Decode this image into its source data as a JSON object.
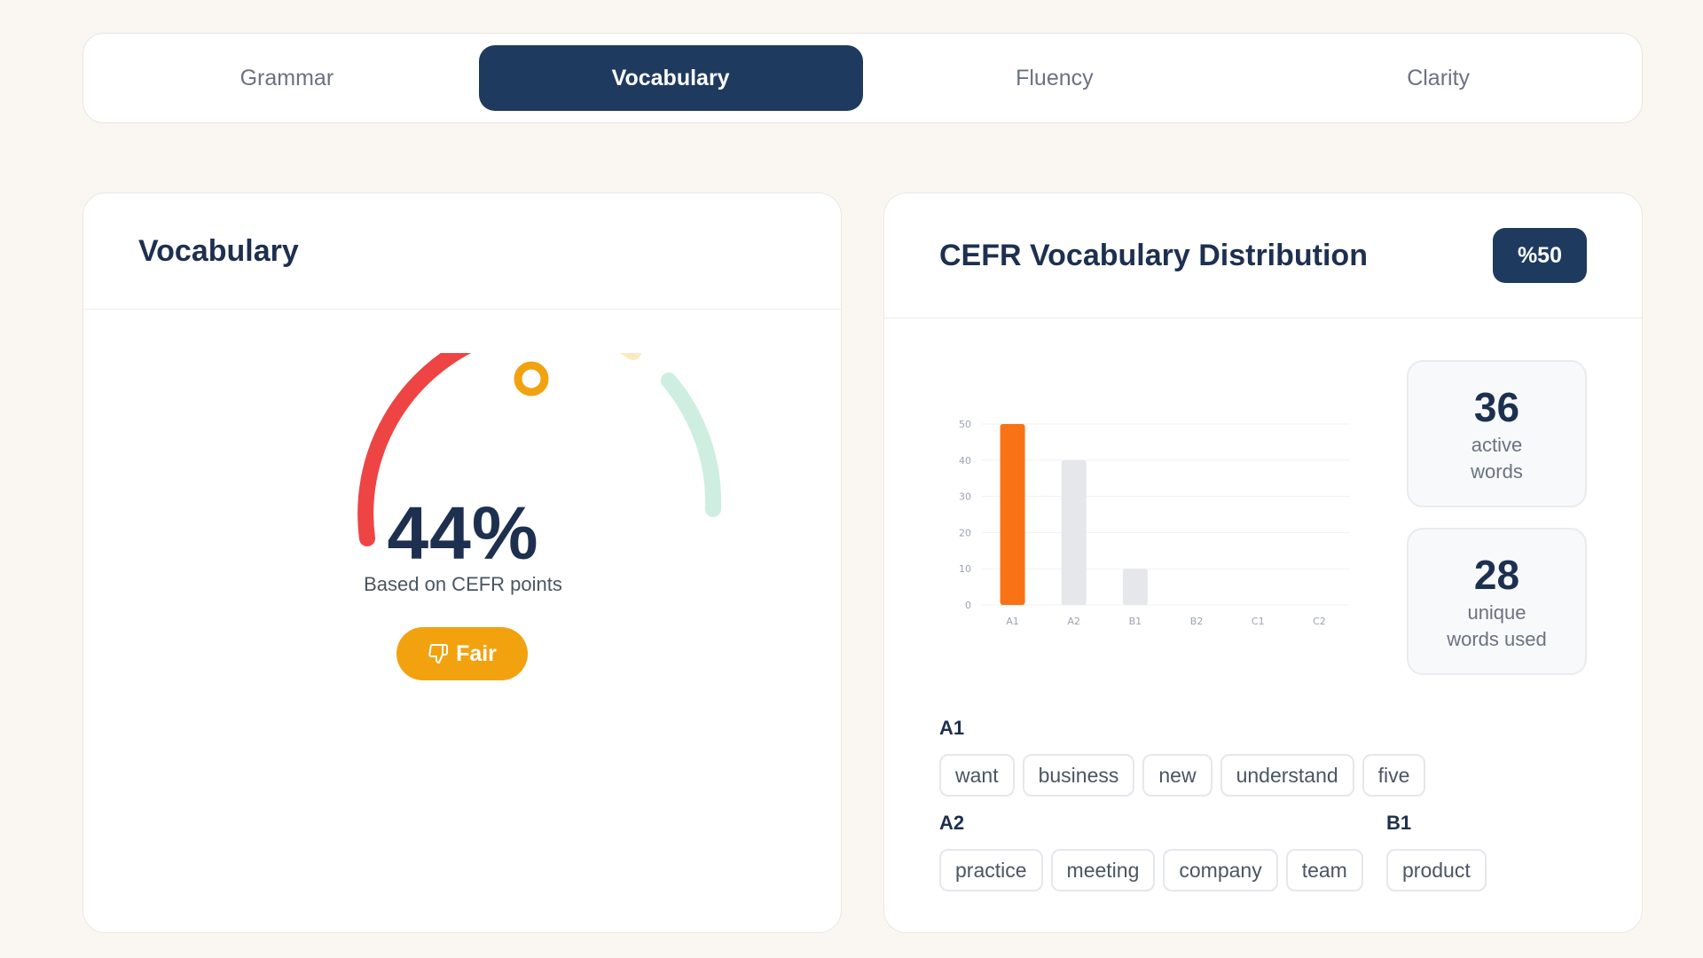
{
  "tabs": [
    "Grammar",
    "Vocabulary",
    "Fluency",
    "Clarity"
  ],
  "active_tab": "Vocabulary",
  "vocab_card": {
    "title": "Vocabulary",
    "score": "44%",
    "score_value": 44,
    "subtitle": "Based on CEFR points",
    "rating": "Fair",
    "gauge_colors": {
      "low": "#ef4444",
      "mid": "#f2a20f",
      "mid_light": "#fde9c1",
      "high": "#cdeee0"
    }
  },
  "cefr_card": {
    "title": "CEFR Vocabulary Distribution",
    "badge": "%50",
    "stats": [
      {
        "value": "36",
        "label_line1": "active",
        "label_line2": "words"
      },
      {
        "value": "28",
        "label_line1": "unique",
        "label_line2": "words used"
      }
    ],
    "levels": [
      {
        "label": "A1",
        "words": [
          "want",
          "business",
          "new",
          "understand",
          "five"
        ]
      },
      {
        "label": "A2",
        "words": [
          "practice",
          "meeting",
          "company",
          "team"
        ]
      },
      {
        "label": "B1",
        "words": [
          "product"
        ]
      }
    ]
  },
  "chart_data": {
    "type": "bar",
    "categories": [
      "A1",
      "A2",
      "B1",
      "B2",
      "C1",
      "C2"
    ],
    "values": [
      50,
      40,
      10,
      0,
      0,
      0
    ],
    "yticks": [
      0,
      10,
      20,
      30,
      40,
      50
    ],
    "ylim": [
      0,
      50
    ],
    "highlight_color": "#f97316",
    "bar_color": "#e5e7eb",
    "grid": true
  }
}
